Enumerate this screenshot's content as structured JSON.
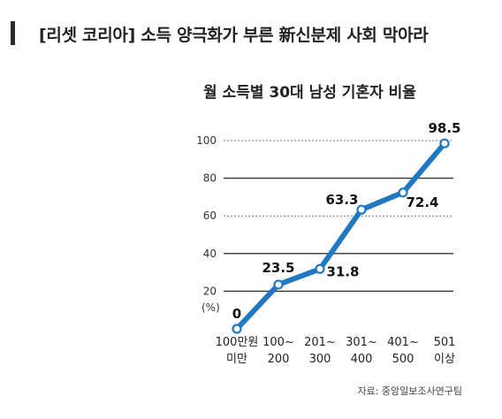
{
  "headline": "[리셋 코리아] 소득 양극화가 부른 新신분제 사회 막아라",
  "chart_data": {
    "type": "line",
    "title": "월 소득별 30대 남성 기혼자 비율",
    "ylabel": "(%)",
    "ylim": [
      0,
      100
    ],
    "yticks": [
      20,
      40,
      60,
      80,
      100
    ],
    "categories": [
      [
        "100만원",
        "미만"
      ],
      [
        "100~",
        "200"
      ],
      [
        "201~",
        "300"
      ],
      [
        "301~",
        "400"
      ],
      [
        "401~",
        "500"
      ],
      [
        "501",
        "이상"
      ]
    ],
    "values": [
      0,
      23.5,
      31.8,
      63.3,
      72.4,
      98.5
    ],
    "value_labels": [
      "0",
      "23.5",
      "31.8",
      "63.3",
      "72.4",
      "98.5"
    ],
    "source": "자료: 중앙일보조사연구팀",
    "grid": true,
    "line_color": "#1f78c1"
  }
}
